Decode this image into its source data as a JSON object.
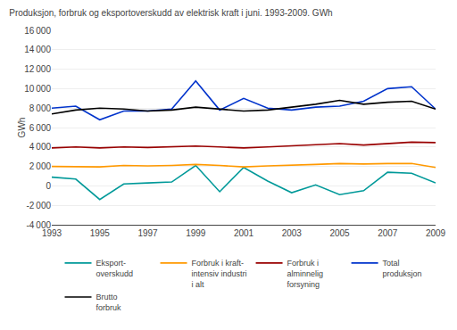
{
  "chart_data": {
    "type": "line",
    "title": "Produksjon, forbruk og eksportoverskudd av elektrisk kraft i juni. 1993-2009. GWh",
    "ylabel": "GWh",
    "x": [
      1993,
      1994,
      1995,
      1996,
      1997,
      1998,
      1999,
      2000,
      2001,
      2002,
      2003,
      2004,
      2005,
      2006,
      2007,
      2008,
      2009
    ],
    "series": [
      {
        "name": "Eksport-\noverskudd",
        "color": "#009999",
        "values": [
          900,
          700,
          -1400,
          200,
          300,
          400,
          2100,
          -600,
          1900,
          500,
          -700,
          100,
          -900,
          -500,
          1400,
          1300,
          300
        ]
      },
      {
        "name": "Forbruk i kraft-\nintensiv industri\ni alt",
        "color": "#FF9900",
        "values": [
          2000,
          2000,
          1950,
          2100,
          2050,
          2100,
          2200,
          2100,
          1950,
          2050,
          2100,
          2200,
          2300,
          2250,
          2300,
          2300,
          1900
        ]
      },
      {
        "name": "Forbruk i\nalminnelig\nforsyning",
        "color": "#990000",
        "values": [
          3900,
          4000,
          3900,
          4000,
          3950,
          4050,
          4100,
          4000,
          3900,
          4000,
          4100,
          4200,
          4350,
          4200,
          4350,
          4500,
          4450
        ]
      },
      {
        "name": "Total\nproduksjon",
        "color": "#0033CC",
        "values": [
          8000,
          8200,
          6800,
          7700,
          7700,
          7900,
          10800,
          7800,
          9000,
          8000,
          7800,
          8100,
          8200,
          8700,
          10000,
          10200,
          7900
        ]
      },
      {
        "name": "Brutto\nforbruk",
        "color": "#000000",
        "values": [
          7400,
          7800,
          8000,
          7900,
          7700,
          7800,
          8100,
          7900,
          7700,
          7800,
          8100,
          8400,
          8800,
          8400,
          8600,
          8700,
          7900
        ]
      }
    ],
    "xlim": [
      1993,
      2009
    ],
    "xticks": [
      1993,
      1995,
      1997,
      1999,
      2001,
      2003,
      2005,
      2007,
      2009
    ],
    "ylim": [
      -4000,
      16000
    ],
    "yticks": [
      {
        "value": -4000,
        "label": "-4 000"
      },
      {
        "value": -2000,
        "label": "-2 000"
      },
      0,
      {
        "value": 2000,
        "label": "2 000"
      },
      {
        "value": 4000,
        "label": "4 000"
      },
      {
        "value": 6000,
        "label": "6 000"
      },
      {
        "value": 8000,
        "label": "8 000"
      },
      {
        "value": 10000,
        "label": "10 000"
      },
      {
        "value": 12000,
        "label": "12 000"
      },
      {
        "value": 14000,
        "label": "14 000"
      },
      {
        "value": 16000,
        "label": "16 000"
      }
    ],
    "grid": true,
    "legend": "bottom"
  }
}
